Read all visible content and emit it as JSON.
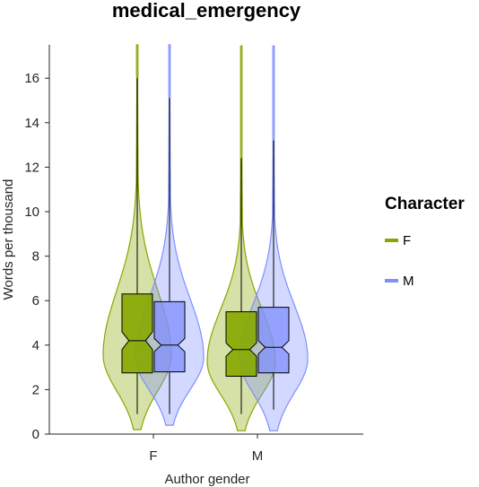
{
  "chart_data": {
    "type": "violin",
    "title": "medical_emergency",
    "xlabel": "Author gender",
    "ylabel": "Words per thousand",
    "ylim": [
      0,
      17.5
    ],
    "yticks": [
      0,
      2,
      4,
      6,
      8,
      10,
      12,
      14,
      16
    ],
    "categories": [
      "F",
      "M"
    ],
    "legend": {
      "title": "Character",
      "position": "right"
    },
    "series": [
      {
        "name": "F",
        "color": "#86a800",
        "groups": [
          {
            "category": "F",
            "whisker_low": 0.9,
            "q1": 2.75,
            "median": 4.2,
            "q3": 6.3,
            "whisker_high": 16.0,
            "notch": [
              3.8,
              4.6
            ],
            "violin_min": 0.2,
            "violin_max": 17.5
          },
          {
            "category": "M",
            "whisker_low": 0.9,
            "q1": 2.6,
            "median": 3.8,
            "q3": 5.5,
            "whisker_high": 12.4,
            "notch": [
              3.5,
              4.1
            ],
            "violin_min": 0.15,
            "violin_max": 17.5
          }
        ]
      },
      {
        "name": "M",
        "color": "#7f8fff",
        "groups": [
          {
            "category": "F",
            "whisker_low": 0.9,
            "q1": 2.8,
            "median": 4.0,
            "q3": 5.95,
            "whisker_high": 15.1,
            "notch": [
              3.7,
              4.3
            ],
            "violin_min": 0.4,
            "violin_max": 17.5
          },
          {
            "category": "M",
            "whisker_low": 1.1,
            "q1": 2.75,
            "median": 3.9,
            "q3": 5.7,
            "whisker_high": 13.2,
            "notch": [
              3.6,
              4.2
            ],
            "violin_min": 0.15,
            "violin_max": 17.5
          }
        ]
      }
    ]
  }
}
